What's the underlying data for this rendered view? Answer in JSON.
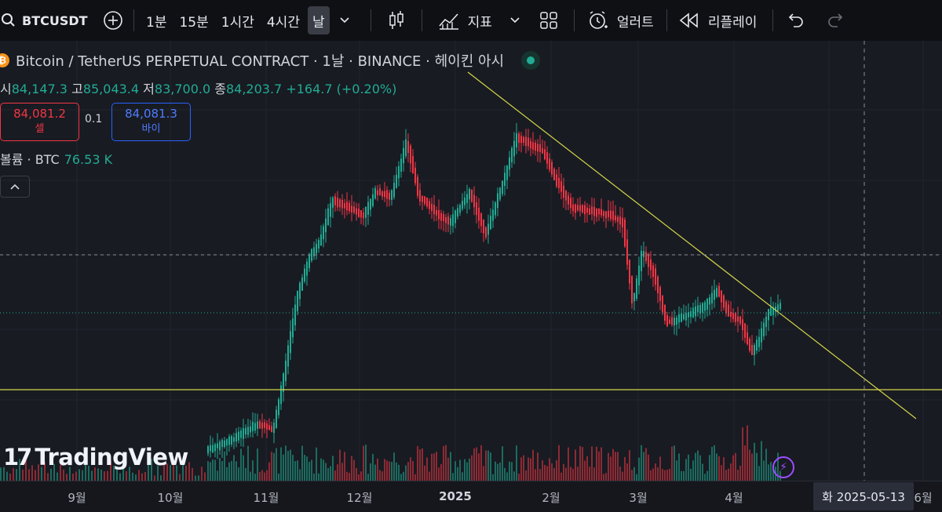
{
  "toolbar": {
    "symbol": "BTCUSDT",
    "intervals": [
      "1분",
      "15분",
      "1시간",
      "4시간",
      "날"
    ],
    "indicators_label": "지표",
    "alert_label": "얼러트",
    "replay_label": "리플레이"
  },
  "legend": {
    "title": "Bitcoin / TetherUS PERPETUAL CONTRACT · 1날 · BINANCE · 헤이킨 아시",
    "open_label": "시",
    "open": "84,147.3",
    "high_label": "고",
    "high": "85,043.4",
    "low_label": "저",
    "low": "83,700.0",
    "close_label": "종",
    "close": "84,203.7",
    "change": "+164.7 (+0.20%)"
  },
  "trade": {
    "sell_price": "84,081.2",
    "sell_label": "셀",
    "spread": "0.1",
    "buy_price": "84,081.3",
    "buy_label": "바이"
  },
  "volume": {
    "label": "볼륨 · BTC",
    "value": "76.53 K"
  },
  "logo": {
    "text": "TradingView"
  },
  "xaxis": {
    "ticks": [
      "9월",
      "10월",
      "11월",
      "12월",
      "2025",
      "2월",
      "3월",
      "4월",
      "6월"
    ],
    "crosshair_label": "화  2025-05-13"
  },
  "colors": {
    "up": "#22ab94",
    "down": "#f23645",
    "trendline": "#d6d64a",
    "background": "#181b22"
  }
}
